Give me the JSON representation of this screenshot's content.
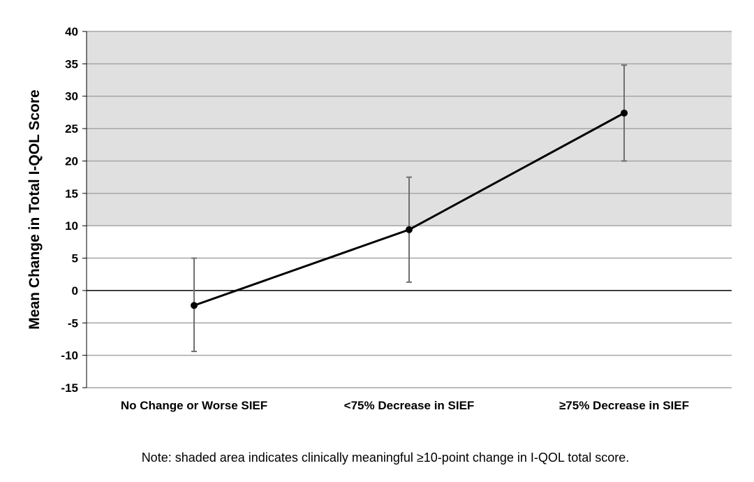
{
  "chart_data": {
    "type": "line",
    "categories": [
      "No Change or Worse SIEF",
      "<75%  Decrease in SIEF",
      "≥75%  Decrease in SIEF"
    ],
    "series": [
      {
        "values": [
          -2.3,
          9.4,
          27.4
        ],
        "error_low": [
          -9.4,
          1.3,
          20.0
        ],
        "error_high": [
          5.0,
          17.5,
          34.8
        ]
      }
    ],
    "title": "",
    "xlabel": "",
    "ylabel": "Mean Change in Total I-QOL Score",
    "ylim": [
      -15,
      40
    ],
    "y_ticks": [
      "40",
      "35",
      "30",
      "25",
      "20",
      "15",
      "10",
      "5",
      "0",
      "-5",
      "-10",
      "-15"
    ],
    "y_tick_values": [
      40,
      35,
      30,
      25,
      20,
      15,
      10,
      5,
      0,
      -5,
      -10,
      -15
    ],
    "shaded_band": [
      10,
      40
    ],
    "grid": true,
    "note": "Note:  shaded area indicates clinically meaningful ≥10-point change in I-QOL total score.",
    "colors": {
      "shade": "#e0e0e0",
      "grid": "#a6a6a6",
      "line": "#000000",
      "error_bar": "#6f6f6f"
    }
  }
}
